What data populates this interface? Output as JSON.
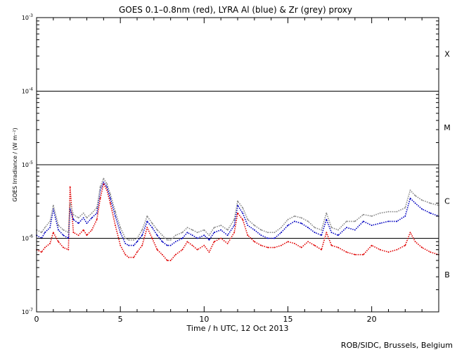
{
  "chart_data": {
    "type": "line",
    "title": "GOES 0.1–0.8nm (red), LYRA Al (blue) & Zr (grey) proxy",
    "xlabel": "Time / h UTC, 12 Oct 2013",
    "ylabel": "GOES Irradiance / (W m⁻²)",
    "xlim": [
      0,
      24
    ],
    "ylim": [
      1e-07,
      0.001
    ],
    "yscale": "log",
    "x_ticks": [
      0,
      5,
      10,
      15,
      20
    ],
    "x_tick_labels": [
      "0",
      "5",
      "10",
      "15",
      "20"
    ],
    "y_tick_labels": [
      {
        "value": 0.001,
        "base": "10",
        "exp": "-3"
      },
      {
        "value": 0.0001,
        "base": "10",
        "exp": "-4"
      },
      {
        "value": 1e-05,
        "base": "10",
        "exp": "-5"
      },
      {
        "value": 1e-06,
        "base": "10",
        "exp": "-6"
      },
      {
        "value": 1e-07,
        "base": "10",
        "exp": "-7"
      }
    ],
    "flare_class_lines": [
      0.0001,
      1e-05,
      1e-06
    ],
    "flare_classes": [
      {
        "label": "X",
        "value": 0.00032
      },
      {
        "label": "M",
        "value": 3.2e-05
      },
      {
        "label": "C",
        "value": 3.2e-06
      },
      {
        "label": "B",
        "value": 3.2e-07
      }
    ],
    "grid": false,
    "series": [
      {
        "color": "#e00000",
        "x": [
          0,
          0.3,
          0.5,
          0.8,
          1.0,
          1.3,
          1.6,
          1.9,
          2.0,
          2.2,
          2.5,
          2.8,
          3.0,
          3.3,
          3.6,
          3.8,
          4.0,
          4.2,
          4.4,
          4.7,
          5.0,
          5.3,
          5.5,
          5.8,
          6.0,
          6.3,
          6.6,
          6.9,
          7.2,
          7.5,
          7.8,
          8.0,
          8.3,
          8.7,
          9.0,
          9.3,
          9.6,
          10.0,
          10.3,
          10.6,
          11.0,
          11.4,
          11.8,
          12.0,
          12.3,
          12.6,
          13.0,
          13.4,
          13.8,
          14.2,
          14.6,
          15.0,
          15.4,
          15.8,
          16.2,
          16.6,
          17.0,
          17.3,
          17.6,
          18.0,
          18.5,
          19.0,
          19.5,
          20.0,
          20.5,
          21.0,
          21.5,
          22.0,
          22.3,
          22.6,
          23.0,
          23.5,
          24.0
        ],
        "values": [
          7e-07,
          6.5e-07,
          7.5e-07,
          8.5e-07,
          1.2e-06,
          9e-07,
          7.5e-07,
          7e-07,
          5e-06,
          1.2e-06,
          1.1e-06,
          1.3e-06,
          1.1e-06,
          1.3e-06,
          1.8e-06,
          3.5e-06,
          5.5e-06,
          4.5e-06,
          3e-06,
          1.5e-06,
          8e-07,
          6e-07,
          5.5e-07,
          5.5e-07,
          6.5e-07,
          8e-07,
          1.4e-06,
          1e-06,
          7e-07,
          6e-07,
          5e-07,
          5e-07,
          6e-07,
          7e-07,
          9e-07,
          8e-07,
          7e-07,
          8e-07,
          6.5e-07,
          9e-07,
          1e-06,
          8.5e-07,
          1.2e-06,
          2.2e-06,
          1.8e-06,
          1.1e-06,
          9e-07,
          8e-07,
          7.5e-07,
          7.5e-07,
          8e-07,
          9e-07,
          8.5e-07,
          7.5e-07,
          9e-07,
          8e-07,
          7e-07,
          1.2e-06,
          8e-07,
          7.5e-07,
          6.5e-07,
          6e-07,
          6e-07,
          8e-07,
          7e-07,
          6.5e-07,
          7e-07,
          8e-07,
          1.2e-06,
          9e-07,
          7.5e-07,
          6.5e-07,
          6e-07
        ]
      },
      {
        "color": "#0000c0",
        "x": [
          0,
          0.3,
          0.5,
          0.8,
          1.0,
          1.3,
          1.6,
          1.9,
          2.0,
          2.2,
          2.5,
          2.8,
          3.0,
          3.3,
          3.6,
          3.8,
          4.0,
          4.2,
          4.4,
          4.7,
          5.0,
          5.3,
          5.5,
          5.8,
          6.0,
          6.3,
          6.6,
          6.9,
          7.2,
          7.5,
          7.8,
          8.0,
          8.3,
          8.7,
          9.0,
          9.3,
          9.6,
          10.0,
          10.3,
          10.6,
          11.0,
          11.4,
          11.8,
          12.0,
          12.3,
          12.6,
          13.0,
          13.4,
          13.8,
          14.2,
          14.6,
          15.0,
          15.4,
          15.8,
          16.2,
          16.6,
          17.0,
          17.3,
          17.6,
          18.0,
          18.5,
          19.0,
          19.5,
          20.0,
          20.5,
          21.0,
          21.5,
          22.0,
          22.3,
          22.6,
          23.0,
          23.5,
          24.0
        ],
        "values": [
          1.1e-06,
          1e-06,
          1.2e-06,
          1.4e-06,
          2.5e-06,
          1.3e-06,
          1.1e-06,
          1e-06,
          2.5e-06,
          1.8e-06,
          1.6e-06,
          1.9e-06,
          1.6e-06,
          1.9e-06,
          2.2e-06,
          4.5e-06,
          5.8e-06,
          5e-06,
          3.5e-06,
          2e-06,
          1.2e-06,
          8.5e-07,
          8e-07,
          8e-07,
          9e-07,
          1.1e-06,
          1.7e-06,
          1.4e-06,
          1.1e-06,
          9e-07,
          8e-07,
          8e-07,
          9e-07,
          1e-06,
          1.2e-06,
          1.1e-06,
          1e-06,
          1.1e-06,
          9.5e-07,
          1.2e-06,
          1.3e-06,
          1.1e-06,
          1.5e-06,
          2.8e-06,
          2.2e-06,
          1.5e-06,
          1.3e-06,
          1.1e-06,
          1e-06,
          1e-06,
          1.2e-06,
          1.5e-06,
          1.7e-06,
          1.6e-06,
          1.4e-06,
          1.2e-06,
          1.1e-06,
          1.8e-06,
          1.2e-06,
          1.1e-06,
          1.4e-06,
          1.3e-06,
          1.7e-06,
          1.5e-06,
          1.6e-06,
          1.7e-06,
          1.7e-06,
          2e-06,
          3.5e-06,
          3e-06,
          2.5e-06,
          2.2e-06,
          2e-06
        ]
      },
      {
        "color": "#888888",
        "x": [
          0,
          0.3,
          0.5,
          0.8,
          1.0,
          1.3,
          1.6,
          1.9,
          2.0,
          2.2,
          2.5,
          2.8,
          3.0,
          3.3,
          3.6,
          3.8,
          4.0,
          4.2,
          4.4,
          4.7,
          5.0,
          5.3,
          5.5,
          5.8,
          6.0,
          6.3,
          6.6,
          6.9,
          7.2,
          7.5,
          7.8,
          8.0,
          8.3,
          8.7,
          9.0,
          9.3,
          9.6,
          10.0,
          10.3,
          10.6,
          11.0,
          11.4,
          11.8,
          12.0,
          12.3,
          12.6,
          13.0,
          13.4,
          13.8,
          14.2,
          14.6,
          15.0,
          15.4,
          15.8,
          16.2,
          16.6,
          17.0,
          17.3,
          17.6,
          18.0,
          18.5,
          19.0,
          19.5,
          20.0,
          20.5,
          21.0,
          21.5,
          22.0,
          22.3,
          22.6,
          23.0,
          23.5,
          24.0
        ],
        "values": [
          1.3e-06,
          1.2e-06,
          1.4e-06,
          1.7e-06,
          2.8e-06,
          1.5e-06,
          1.3e-06,
          1.2e-06,
          3e-06,
          2.1e-06,
          1.9e-06,
          2.2e-06,
          1.9e-06,
          2.2e-06,
          2.6e-06,
          5e-06,
          6.5e-06,
          5.5e-06,
          4e-06,
          2.3e-06,
          1.4e-06,
          1e-06,
          9.5e-07,
          9.5e-07,
          1e-06,
          1.3e-06,
          2e-06,
          1.6e-06,
          1.3e-06,
          1.1e-06,
          9.5e-07,
          9.5e-07,
          1.1e-06,
          1.2e-06,
          1.4e-06,
          1.3e-06,
          1.2e-06,
          1.3e-06,
          1.1e-06,
          1.4e-06,
          1.5e-06,
          1.3e-06,
          1.8e-06,
          3.2e-06,
          2.6e-06,
          1.8e-06,
          1.5e-06,
          1.3e-06,
          1.2e-06,
          1.2e-06,
          1.4e-06,
          1.8e-06,
          2e-06,
          1.9e-06,
          1.7e-06,
          1.4e-06,
          1.3e-06,
          2.2e-06,
          1.4e-06,
          1.3e-06,
          1.7e-06,
          1.7e-06,
          2.1e-06,
          2e-06,
          2.2e-06,
          2.3e-06,
          2.3e-06,
          2.6e-06,
          4.5e-06,
          3.8e-06,
          3.3e-06,
          3e-06,
          2.8e-06
        ]
      }
    ]
  },
  "footer": {
    "credit": "ROB/SIDC, Brussels, Belgium"
  }
}
